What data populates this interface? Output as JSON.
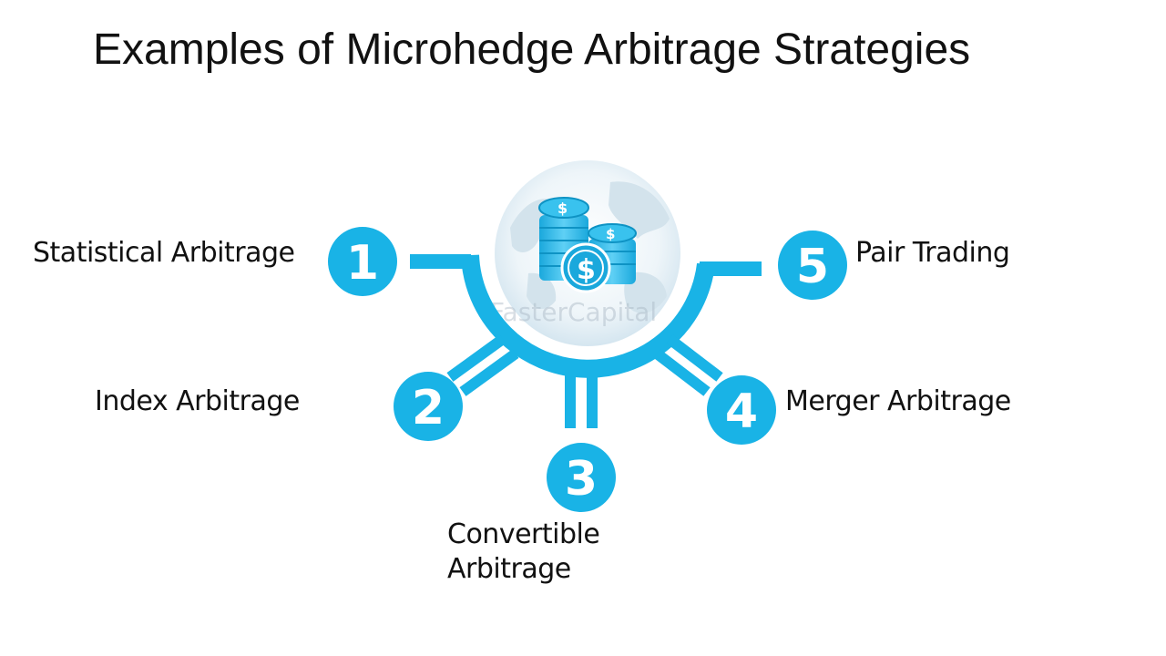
{
  "title": "Examples of Microhedge Arbitrage Strategies",
  "watermark": "FasterCapital",
  "colors": {
    "accent": "#19b3e6",
    "accent_dark": "#0e93c4",
    "globe": "#dceaf2"
  },
  "icons": [
    "globe-icon",
    "coin-stack-icon",
    "dollar-coin-icon"
  ],
  "strategies": [
    {
      "number": "1",
      "label": "Statistical Arbitrage"
    },
    {
      "number": "2",
      "label": "Index Arbitrage"
    },
    {
      "number": "3",
      "label_line1": "Convertible",
      "label_line2": "Arbitrage"
    },
    {
      "number": "4",
      "label": "Merger Arbitrage"
    },
    {
      "number": "5",
      "label": "Pair Trading"
    }
  ]
}
